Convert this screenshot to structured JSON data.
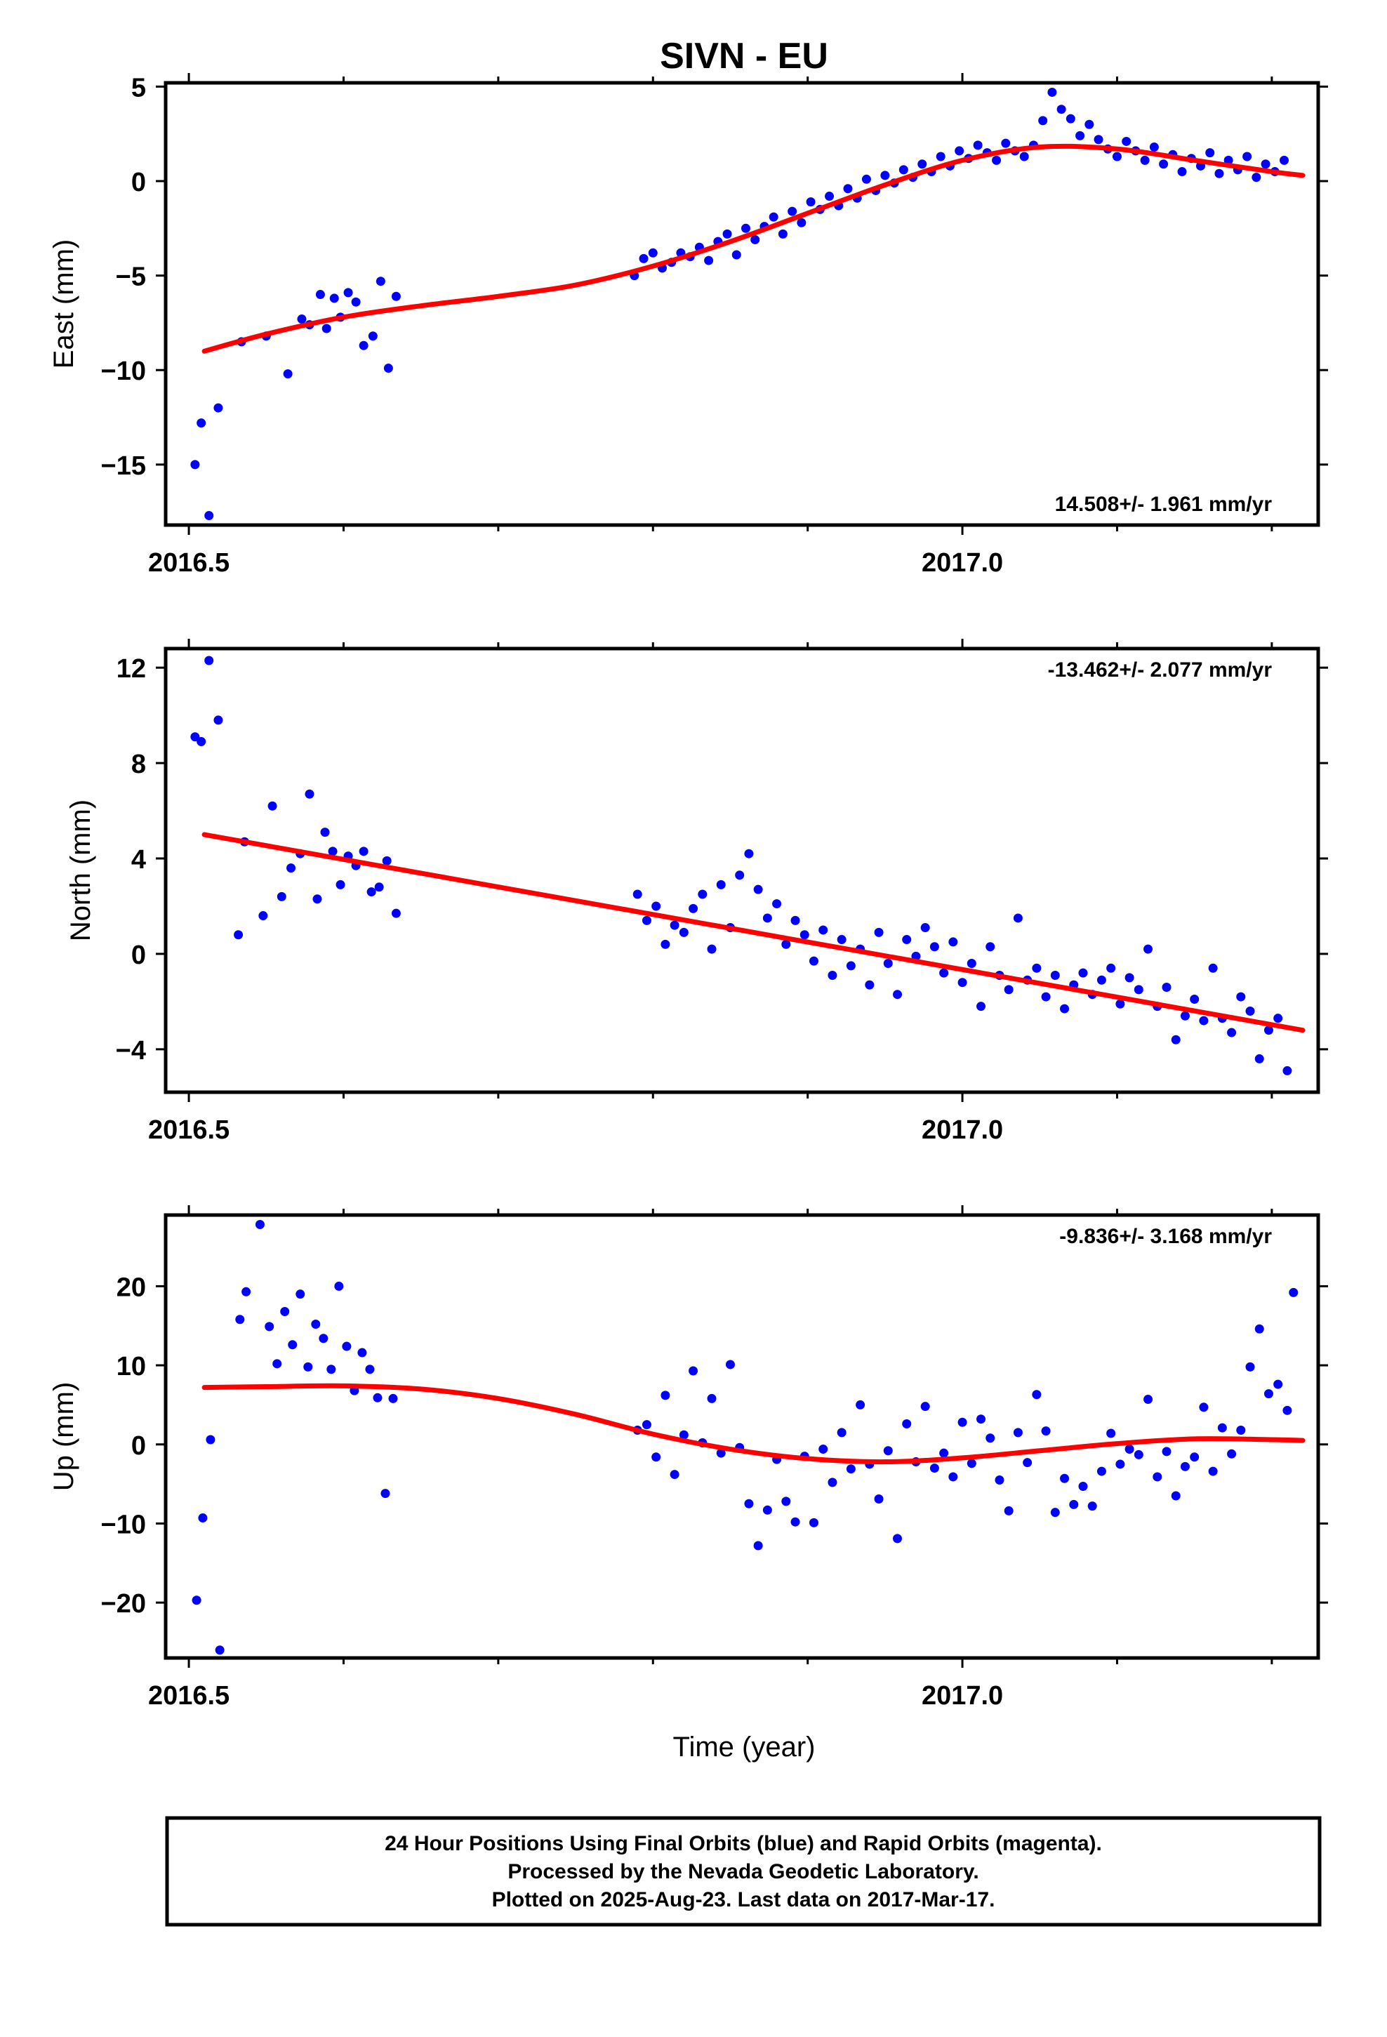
{
  "title": "SIVN - EU",
  "footer": {
    "lines": [
      "24 Hour Positions Using Final Orbits (blue) and Rapid Orbits (magenta).",
      "Processed by the Nevada Geodetic Laboratory.",
      "Plotted on 2025-Aug-23. Last data on 2017-Mar-17."
    ]
  },
  "colors": {
    "points": "#0000ff",
    "fit": "#ff0000",
    "frame": "#000000"
  },
  "chart_data": [
    {
      "type": "scatter",
      "ylabel": "East (mm)",
      "xlabel": "",
      "rate_text": "14.508+/- 1.961 mm/yr",
      "rate_position": "bottom-right",
      "xlim": [
        2016.485,
        2017.23
      ],
      "ylim": [
        -18.2,
        5.2
      ],
      "yticks": [
        5,
        0,
        -5,
        -10,
        -15
      ],
      "ytick_labels": [
        "5",
        "0",
        "−5",
        "−10",
        "−15"
      ],
      "xticks": [
        2016.5,
        2017.0
      ],
      "xtick_labels": [
        "2016.5",
        "2017.0"
      ],
      "series": [
        {
          "kind": "points",
          "x": [
            2016.504,
            2016.508,
            2016.513,
            2016.519,
            2016.534,
            2016.55,
            2016.564,
            2016.573,
            2016.578,
            2016.585,
            2016.589,
            2016.594,
            2016.598,
            2016.603,
            2016.608,
            2016.613,
            2016.619,
            2016.624,
            2016.629,
            2016.634,
            2016.788,
            2016.794,
            2016.8,
            2016.806,
            2016.812,
            2016.818,
            2016.824,
            2016.83,
            2016.836,
            2016.842,
            2016.848,
            2016.854,
            2016.86,
            2016.866,
            2016.872,
            2016.878,
            2016.884,
            2016.89,
            2016.896,
            2016.902,
            2016.908,
            2016.914,
            2016.92,
            2016.926,
            2016.932,
            2016.938,
            2016.944,
            2016.95,
            2016.956,
            2016.962,
            2016.968,
            2016.974,
            2016.98,
            2016.986,
            2016.992,
            2016.998,
            2017.004,
            2017.01,
            2017.016,
            2017.022,
            2017.028,
            2017.034,
            2017.04,
            2017.046,
            2017.052,
            2017.058,
            2017.064,
            2017.07,
            2017.076,
            2017.082,
            2017.088,
            2017.094,
            2017.1,
            2017.106,
            2017.112,
            2017.118,
            2017.124,
            2017.13,
            2017.136,
            2017.142,
            2017.148,
            2017.154,
            2017.16,
            2017.166,
            2017.172,
            2017.178,
            2017.184,
            2017.19,
            2017.196,
            2017.202,
            2017.208
          ],
          "y": [
            -15.0,
            -12.8,
            -17.7,
            -12.0,
            -8.5,
            -8.2,
            -10.2,
            -7.3,
            -7.6,
            -6.0,
            -7.8,
            -6.2,
            -7.2,
            -5.9,
            -6.4,
            -8.7,
            -8.2,
            -5.3,
            -9.9,
            -6.1,
            -5.0,
            -4.1,
            -3.8,
            -4.6,
            -4.3,
            -3.8,
            -4.0,
            -3.5,
            -4.2,
            -3.2,
            -2.8,
            -3.9,
            -2.5,
            -3.1,
            -2.4,
            -1.9,
            -2.8,
            -1.6,
            -2.2,
            -1.1,
            -1.5,
            -0.8,
            -1.3,
            -0.4,
            -0.9,
            0.1,
            -0.5,
            0.3,
            -0.1,
            0.6,
            0.2,
            0.9,
            0.5,
            1.3,
            0.8,
            1.6,
            1.2,
            1.9,
            1.5,
            1.1,
            2.0,
            1.6,
            1.3,
            1.9,
            3.2,
            4.7,
            3.8,
            3.3,
            2.4,
            3.0,
            2.2,
            1.7,
            1.3,
            2.1,
            1.6,
            1.1,
            1.8,
            0.9,
            1.4,
            0.5,
            1.2,
            0.8,
            1.5,
            0.4,
            1.1,
            0.6,
            1.3,
            0.2,
            0.9,
            0.5,
            1.1
          ],
          "color": "#0000ff"
        },
        {
          "kind": "line",
          "x": [
            2016.51,
            2016.55,
            2016.6,
            2016.65,
            2016.7,
            2016.75,
            2016.8,
            2016.85,
            2016.9,
            2016.95,
            2017.0,
            2017.05,
            2017.1,
            2017.15,
            2017.2,
            2017.22
          ],
          "y": [
            -9.0,
            -8.1,
            -7.2,
            -6.6,
            -6.1,
            -5.5,
            -4.5,
            -3.2,
            -1.7,
            -0.2,
            1.1,
            1.8,
            1.7,
            1.1,
            0.5,
            0.3
          ],
          "color": "#ff0000"
        }
      ]
    },
    {
      "type": "scatter",
      "ylabel": "North (mm)",
      "xlabel": "",
      "rate_text": "-13.462+/- 2.077 mm/yr",
      "rate_position": "top-right",
      "xlim": [
        2016.485,
        2017.23
      ],
      "ylim": [
        -5.8,
        12.8
      ],
      "yticks": [
        12,
        8,
        4,
        0,
        -4
      ],
      "ytick_labels": [
        "12",
        "8",
        "4",
        "0",
        "−4"
      ],
      "xticks": [
        2016.5,
        2017.0
      ],
      "xtick_labels": [
        "2016.5",
        "2017.0"
      ],
      "series": [
        {
          "kind": "points",
          "x": [
            2016.504,
            2016.508,
            2016.513,
            2016.519,
            2016.532,
            2016.536,
            2016.548,
            2016.554,
            2016.56,
            2016.566,
            2016.572,
            2016.578,
            2016.583,
            2016.588,
            2016.593,
            2016.598,
            2016.603,
            2016.608,
            2016.613,
            2016.618,
            2016.623,
            2016.628,
            2016.634,
            2016.79,
            2016.796,
            2016.802,
            2016.808,
            2016.814,
            2016.82,
            2016.826,
            2016.832,
            2016.838,
            2016.844,
            2016.85,
            2016.856,
            2016.862,
            2016.868,
            2016.874,
            2016.88,
            2016.886,
            2016.892,
            2016.898,
            2016.904,
            2016.91,
            2016.916,
            2016.922,
            2016.928,
            2016.934,
            2016.94,
            2016.946,
            2016.952,
            2016.958,
            2016.964,
            2016.97,
            2016.976,
            2016.982,
            2016.988,
            2016.994,
            2017.0,
            2017.006,
            2017.012,
            2017.018,
            2017.024,
            2017.03,
            2017.036,
            2017.042,
            2017.048,
            2017.054,
            2017.06,
            2017.066,
            2017.072,
            2017.078,
            2017.084,
            2017.09,
            2017.096,
            2017.102,
            2017.108,
            2017.114,
            2017.12,
            2017.126,
            2017.132,
            2017.138,
            2017.144,
            2017.15,
            2017.156,
            2017.162,
            2017.168,
            2017.174,
            2017.18,
            2017.186,
            2017.192,
            2017.198,
            2017.204,
            2017.21
          ],
          "y": [
            9.1,
            8.9,
            12.3,
            9.8,
            0.8,
            4.7,
            1.6,
            6.2,
            2.4,
            3.6,
            4.2,
            6.7,
            2.3,
            5.1,
            4.3,
            2.9,
            4.1,
            3.7,
            4.3,
            2.6,
            2.8,
            3.9,
            1.7,
            2.5,
            1.4,
            2.0,
            0.4,
            1.2,
            0.9,
            1.9,
            2.5,
            0.2,
            2.9,
            1.1,
            3.3,
            4.2,
            2.7,
            1.5,
            2.1,
            0.4,
            1.4,
            0.8,
            -0.3,
            1.0,
            -0.9,
            0.6,
            -0.5,
            0.2,
            -1.3,
            0.9,
            -0.4,
            -1.7,
            0.6,
            -0.1,
            1.1,
            0.3,
            -0.8,
            0.5,
            -1.2,
            -0.4,
            -2.2,
            0.3,
            -0.9,
            -1.5,
            1.5,
            -1.1,
            -0.6,
            -1.8,
            -0.9,
            -2.3,
            -1.3,
            -0.8,
            -1.7,
            -1.1,
            -0.6,
            -2.1,
            -1.0,
            -1.5,
            0.2,
            -2.2,
            -1.4,
            -3.6,
            -2.6,
            -1.9,
            -2.8,
            -0.6,
            -2.7,
            -3.3,
            -1.8,
            -2.4,
            -4.4,
            -3.2,
            -2.7,
            -4.9
          ],
          "color": "#0000ff"
        },
        {
          "kind": "line",
          "x": [
            2016.51,
            2017.22
          ],
          "y": [
            5.0,
            -3.2
          ],
          "color": "#ff0000"
        }
      ]
    },
    {
      "type": "scatter",
      "ylabel": "Up (mm)",
      "xlabel": "Time (year)",
      "rate_text": "-9.836+/- 3.168 mm/yr",
      "rate_position": "top-right",
      "xlim": [
        2016.485,
        2017.23
      ],
      "ylim": [
        -27.0,
        29.0
      ],
      "yticks": [
        20,
        10,
        0,
        -10,
        -20
      ],
      "ytick_labels": [
        "20",
        "10",
        "0",
        "−10",
        "−20"
      ],
      "xticks": [
        2016.5,
        2017.0
      ],
      "xtick_labels": [
        "2016.5",
        "2017.0"
      ],
      "series": [
        {
          "kind": "points",
          "x": [
            2016.505,
            2016.509,
            2016.514,
            2016.52,
            2016.533,
            2016.537,
            2016.546,
            2016.552,
            2016.557,
            2016.562,
            2016.567,
            2016.572,
            2016.577,
            2016.582,
            2016.587,
            2016.592,
            2016.597,
            2016.602,
            2016.607,
            2016.612,
            2016.617,
            2016.622,
            2016.627,
            2016.632,
            2016.79,
            2016.796,
            2016.802,
            2016.808,
            2016.814,
            2016.82,
            2016.826,
            2016.832,
            2016.838,
            2016.844,
            2016.85,
            2016.856,
            2016.862,
            2016.868,
            2016.874,
            2016.88,
            2016.886,
            2016.892,
            2016.898,
            2016.904,
            2016.91,
            2016.916,
            2016.922,
            2016.928,
            2016.934,
            2016.94,
            2016.946,
            2016.952,
            2016.958,
            2016.964,
            2016.97,
            2016.976,
            2016.982,
            2016.988,
            2016.994,
            2017.0,
            2017.006,
            2017.012,
            2017.018,
            2017.024,
            2017.03,
            2017.036,
            2017.042,
            2017.048,
            2017.054,
            2017.06,
            2017.066,
            2017.072,
            2017.078,
            2017.084,
            2017.09,
            2017.096,
            2017.102,
            2017.108,
            2017.114,
            2017.12,
            2017.126,
            2017.132,
            2017.138,
            2017.144,
            2017.15,
            2017.156,
            2017.162,
            2017.168,
            2017.174,
            2017.18,
            2017.186,
            2017.192,
            2017.198,
            2017.204,
            2017.21,
            2017.214
          ],
          "y": [
            -19.7,
            -9.3,
            0.6,
            -26.0,
            15.8,
            19.3,
            27.8,
            14.9,
            10.2,
            16.8,
            12.6,
            19.0,
            9.8,
            15.2,
            13.4,
            9.5,
            20.0,
            12.4,
            6.8,
            11.6,
            9.5,
            5.9,
            -6.2,
            5.8,
            1.8,
            2.5,
            -1.6,
            6.2,
            -3.8,
            1.2,
            9.3,
            0.2,
            5.8,
            -1.1,
            10.1,
            -0.4,
            -7.5,
            -12.8,
            -8.3,
            -1.9,
            -7.2,
            -9.8,
            -1.5,
            -9.9,
            -0.6,
            -4.8,
            1.5,
            -3.1,
            5.0,
            -2.5,
            -6.9,
            -0.8,
            -11.9,
            2.6,
            -2.2,
            4.8,
            -3.0,
            -1.1,
            -4.1,
            2.8,
            -2.4,
            3.2,
            0.8,
            -4.5,
            -8.4,
            1.5,
            -2.3,
            6.3,
            1.7,
            -8.6,
            -4.3,
            -7.6,
            -5.3,
            -7.8,
            -3.4,
            1.4,
            -2.5,
            -0.6,
            -1.3,
            5.7,
            -4.1,
            -0.9,
            -6.5,
            -2.8,
            -1.6,
            4.7,
            -3.4,
            2.1,
            -1.2,
            1.8,
            9.8,
            14.6,
            6.4,
            7.6,
            4.3,
            19.2
          ],
          "color": "#0000ff"
        },
        {
          "kind": "line",
          "x": [
            2016.51,
            2016.55,
            2016.6,
            2016.65,
            2016.7,
            2016.75,
            2016.8,
            2016.85,
            2016.9,
            2016.95,
            2017.0,
            2017.05,
            2017.1,
            2017.15,
            2017.2,
            2017.22
          ],
          "y": [
            7.2,
            7.3,
            7.4,
            7.0,
            5.8,
            3.8,
            1.3,
            -0.6,
            -1.8,
            -2.2,
            -1.7,
            -0.8,
            0.1,
            0.7,
            0.6,
            0.5
          ],
          "color": "#ff0000"
        }
      ]
    }
  ]
}
